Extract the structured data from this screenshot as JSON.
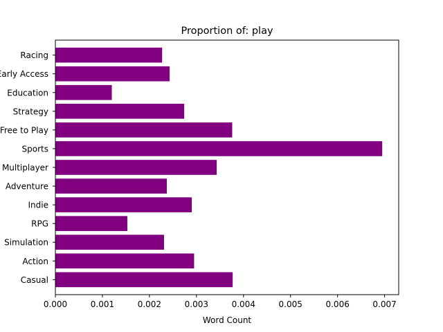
{
  "chart_data": {
    "type": "bar",
    "orientation": "horizontal",
    "title": "Proportion of: play",
    "xlabel": "Word Count",
    "ylabel": "",
    "xlim": [
      0,
      0.0073
    ],
    "xticks": [
      "0.000",
      "0.001",
      "0.002",
      "0.003",
      "0.004",
      "0.005",
      "0.006",
      "0.007"
    ],
    "categories": [
      "Casual",
      "Action",
      "Simulation",
      "RPG",
      "Indie",
      "Adventure",
      "Multiplayer",
      "Sports",
      "Free to Play",
      "Strategy",
      "Education",
      "Early Access",
      "Racing"
    ],
    "values": [
      0.00377,
      0.00295,
      0.00231,
      0.00153,
      0.0029,
      0.00237,
      0.00343,
      0.00695,
      0.00376,
      0.00274,
      0.0012,
      0.00243,
      0.00227
    ],
    "bar_color": "#800080",
    "grid": false
  }
}
